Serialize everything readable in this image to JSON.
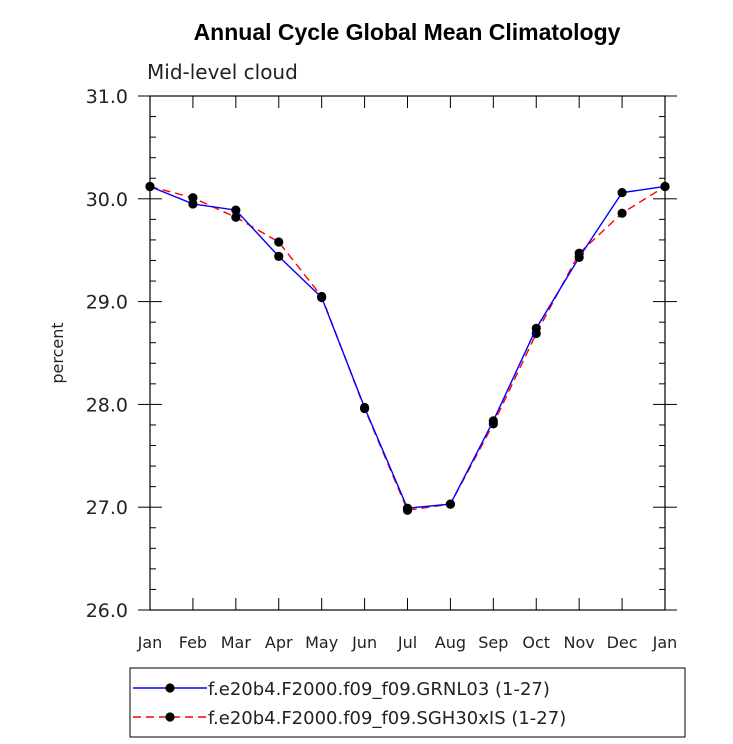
{
  "chart_data": {
    "type": "line",
    "title": "Annual Cycle Global Mean Climatology",
    "subtitle": "Mid-level cloud",
    "ylabel": "percent",
    "xlabel": "",
    "ylim": [
      26.0,
      31.0
    ],
    "ytick_labels": [
      "26.0",
      "27.0",
      "28.0",
      "29.0",
      "30.0",
      "31.0"
    ],
    "categories": [
      "Jan",
      "Feb",
      "Mar",
      "Apr",
      "May",
      "Jun",
      "Jul",
      "Aug",
      "Sep",
      "Oct",
      "Nov",
      "Dec",
      "Jan"
    ],
    "series": [
      {
        "name": "f.e20b4.F2000.f09_f09.GRNL03 (1-27)",
        "color": "#0000ff",
        "dash": "solid",
        "marker": "circle",
        "values": [
          30.12,
          29.95,
          29.89,
          29.44,
          29.04,
          27.97,
          26.99,
          27.03,
          27.84,
          28.74,
          29.43,
          30.06,
          30.12
        ]
      },
      {
        "name": "f.e20b4.F2000.f09_f09.SGH30xIS (1-27)",
        "color": "#ff0000",
        "dash": "dashed",
        "marker": "circle",
        "values": [
          30.12,
          30.01,
          29.82,
          29.58,
          29.05,
          27.96,
          26.97,
          27.03,
          27.81,
          28.69,
          29.47,
          29.86,
          30.12
        ]
      }
    ],
    "grid": false,
    "legend_position": "bottom"
  }
}
